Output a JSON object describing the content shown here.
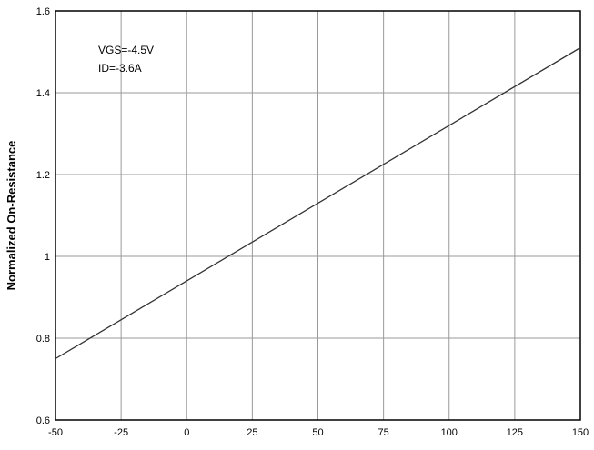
{
  "chart_data": {
    "type": "line",
    "title": "",
    "xlabel": "",
    "ylabel": "Normalized On-Resistance",
    "xlim": [
      -50,
      150
    ],
    "ylim": [
      0.6,
      1.6
    ],
    "x_ticks": [
      -50,
      -25,
      0,
      25,
      50,
      75,
      100,
      125,
      150
    ],
    "y_ticks": [
      0.6,
      0.8,
      1,
      1.2,
      1.4,
      1.6
    ],
    "x_tick_labels": [
      "-50",
      "-25",
      "0",
      "25",
      "50",
      "75",
      "100",
      "125",
      "150"
    ],
    "y_tick_labels": [
      "0.6",
      "0.8",
      "1",
      "1.2",
      "1.4",
      "1.6"
    ],
    "grid": true,
    "series": [
      {
        "x": [
          -50,
          150
        ],
        "y": [
          0.75,
          1.51
        ],
        "color": "#333333"
      }
    ],
    "annotations": [
      "VGS=-4.5V",
      "ID=-3.6A"
    ]
  }
}
